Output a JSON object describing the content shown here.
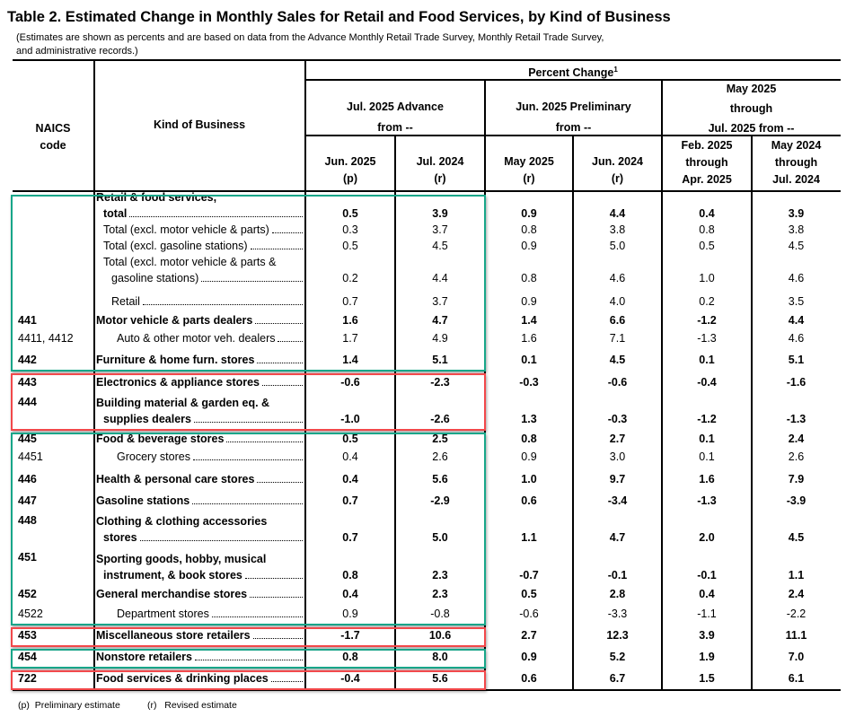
{
  "title": "Table 2.  Estimated Change in Monthly Sales for Retail and Food Services, by Kind of Business",
  "subtitle_lines": [
    "(Estimates are shown as percents and are based on data from the Advance Monthly Retail Trade Survey,  Monthly Retail Trade Survey,",
    "and administrative records.)"
  ],
  "headers": {
    "naics": [
      "NAICS",
      "code"
    ],
    "kind": "Kind of Business",
    "percent_change": "Percent Change",
    "percent_change_sup": "1",
    "groups": [
      [
        "Jul. 2025 Advance",
        "from --"
      ],
      [
        "Jun. 2025 Preliminary",
        "from --"
      ],
      [
        "May 2025",
        "through",
        "Jul. 2025 from --"
      ]
    ],
    "columns": [
      [
        "Jun. 2025",
        "(p)"
      ],
      [
        "Jul. 2024",
        "(r)"
      ],
      [
        "May 2025",
        "(r)"
      ],
      [
        "Jun. 2024",
        "(r)"
      ],
      [
        "Feb. 2025",
        "through",
        "Apr. 2025"
      ],
      [
        "May 2024",
        "through",
        "Jul. 2024"
      ]
    ]
  },
  "rows": [
    {
      "code": "",
      "lines": [
        "Retail & food services,",
        "total"
      ],
      "bold": true,
      "level": 0,
      "values": [
        "0.5",
        "3.9",
        "0.9",
        "4.4",
        "0.4",
        "3.9"
      ]
    },
    {
      "code": "",
      "lines": [
        "Total (excl. motor vehicle & parts)"
      ],
      "bold": false,
      "level": 1,
      "values": [
        "0.3",
        "3.7",
        "0.8",
        "3.8",
        "0.8",
        "3.8"
      ]
    },
    {
      "code": "",
      "lines": [
        "Total (excl. gasoline stations)"
      ],
      "bold": false,
      "level": 1,
      "values": [
        "0.5",
        "4.5",
        "0.9",
        "5.0",
        "0.5",
        "4.5"
      ]
    },
    {
      "code": "",
      "lines": [
        "Total (excl. motor vehicle & parts &",
        "gasoline stations)"
      ],
      "bold": false,
      "level": 1,
      "values": [
        "0.2",
        "4.4",
        "0.8",
        "4.6",
        "1.0",
        "4.6"
      ]
    },
    {
      "code": "",
      "lines": [
        "Retail"
      ],
      "bold": false,
      "level": 2,
      "values": [
        "0.7",
        "3.7",
        "0.9",
        "4.0",
        "0.2",
        "3.5"
      ]
    },
    {
      "code": "441",
      "lines": [
        "Motor vehicle & parts dealers"
      ],
      "bold": true,
      "level": 0,
      "values": [
        "1.6",
        "4.7",
        "1.4",
        "6.6",
        "-1.2",
        "4.4"
      ]
    },
    {
      "code": "4411, 4412",
      "lines": [
        "Auto & other motor veh. dealers"
      ],
      "bold": false,
      "level": 3,
      "values": [
        "1.7",
        "4.9",
        "1.6",
        "7.1",
        "-1.3",
        "4.6"
      ]
    },
    {
      "code": "442",
      "lines": [
        "Furniture & home furn. stores"
      ],
      "bold": true,
      "level": 0,
      "values": [
        "1.4",
        "5.1",
        "0.1",
        "4.5",
        "0.1",
        "5.1"
      ]
    },
    {
      "code": "443",
      "lines": [
        "Electronics & appliance stores"
      ],
      "bold": true,
      "level": 0,
      "values": [
        "-0.6",
        "-2.3",
        "-0.3",
        "-0.6",
        "-0.4",
        "-1.6"
      ]
    },
    {
      "code": "444",
      "lines": [
        "Building material & garden eq. &",
        "supplies dealers"
      ],
      "bold": true,
      "level": 0,
      "values": [
        "-1.0",
        "-2.6",
        "1.3",
        "-0.3",
        "-1.2",
        "-1.3"
      ]
    },
    {
      "code": "445",
      "lines": [
        "Food & beverage stores"
      ],
      "bold": true,
      "level": 0,
      "values": [
        "0.5",
        "2.5",
        "0.8",
        "2.7",
        "0.1",
        "2.4"
      ]
    },
    {
      "code": "4451",
      "lines": [
        "Grocery stores"
      ],
      "bold": false,
      "level": 3,
      "values": [
        "0.4",
        "2.6",
        "0.9",
        "3.0",
        "0.1",
        "2.6"
      ]
    },
    {
      "code": "446",
      "lines": [
        "Health & personal care stores"
      ],
      "bold": true,
      "level": 0,
      "values": [
        "0.4",
        "5.6",
        "1.0",
        "9.7",
        "1.6",
        "7.9"
      ]
    },
    {
      "code": "447",
      "lines": [
        "Gasoline stations"
      ],
      "bold": true,
      "level": 0,
      "values": [
        "0.7",
        "-2.9",
        "0.6",
        "-3.4",
        "-1.3",
        "-3.9"
      ]
    },
    {
      "code": "448",
      "lines": [
        "Clothing & clothing accessories",
        "stores"
      ],
      "bold": true,
      "level": 0,
      "values": [
        "0.7",
        "5.0",
        "1.1",
        "4.7",
        "2.0",
        "4.5"
      ]
    },
    {
      "code": "451",
      "lines": [
        "Sporting goods, hobby, musical",
        "instrument, & book stores"
      ],
      "bold": true,
      "level": 0,
      "values": [
        "0.8",
        "2.3",
        "-0.7",
        "-0.1",
        "-0.1",
        "1.1"
      ]
    },
    {
      "code": "452",
      "lines": [
        "General merchandise stores"
      ],
      "bold": true,
      "level": 0,
      "values": [
        "0.4",
        "2.3",
        "0.5",
        "2.8",
        "0.4",
        "2.4"
      ]
    },
    {
      "code": "4522",
      "lines": [
        "Department stores"
      ],
      "bold": false,
      "level": 3,
      "values": [
        "0.9",
        "-0.8",
        "-0.6",
        "-3.3",
        "-1.1",
        "-2.2"
      ]
    },
    {
      "code": "453",
      "lines": [
        "Miscellaneous store retailers"
      ],
      "bold": true,
      "level": 0,
      "values": [
        "-1.7",
        "10.6",
        "2.7",
        "12.3",
        "3.9",
        "11.1"
      ]
    },
    {
      "code": "454",
      "lines": [
        "Nonstore retailers"
      ],
      "bold": true,
      "level": 0,
      "values": [
        "0.8",
        "8.0",
        "0.9",
        "5.2",
        "1.9",
        "7.0"
      ]
    },
    {
      "code": "722",
      "lines": [
        "Food services & drinking places"
      ],
      "bold": true,
      "level": 0,
      "values": [
        "-0.4",
        "5.6",
        "0.6",
        "6.7",
        "1.5",
        "6.1"
      ]
    }
  ],
  "highlights": [
    {
      "color": "#17a689",
      "first_row": 0,
      "last_row": 7
    },
    {
      "color": "#f2484a",
      "first_row": 8,
      "last_row": 9
    },
    {
      "color": "#17a689",
      "first_row": 10,
      "last_row": 17
    },
    {
      "color": "#f2484a",
      "first_row": 18,
      "last_row": 18
    },
    {
      "color": "#17a689",
      "first_row": 19,
      "last_row": 19
    },
    {
      "color": "#f2484a",
      "first_row": 20,
      "last_row": 20
    }
  ],
  "footnotes": [
    {
      "mark": "(p)",
      "text": "Preliminary estimate"
    },
    {
      "mark": "(r)",
      "text": "Revised estimate"
    }
  ]
}
